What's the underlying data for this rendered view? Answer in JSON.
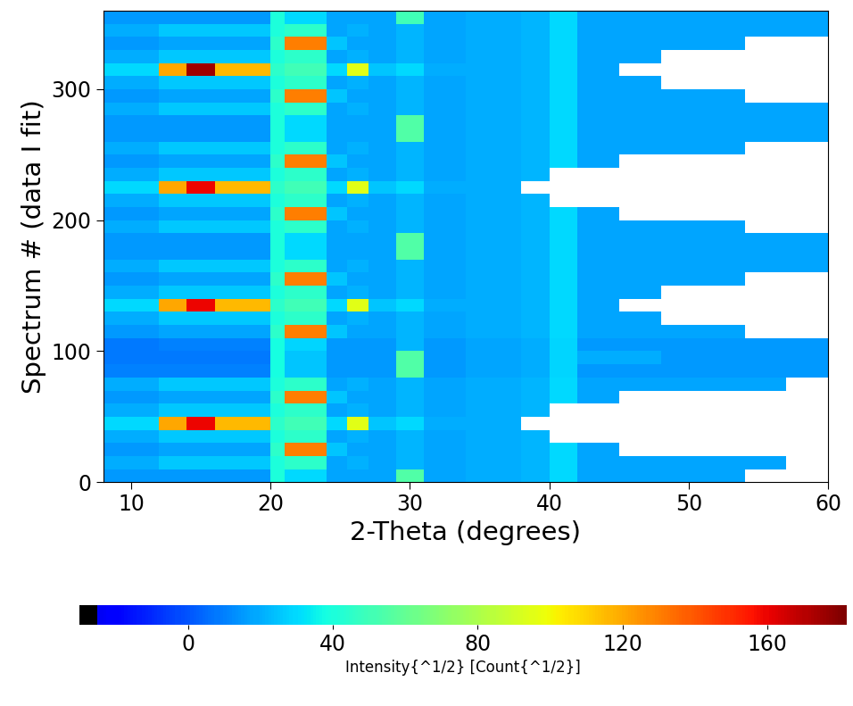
{
  "chart_data": {
    "type": "heatmap",
    "x_label": "2-Theta (degrees)",
    "y_label": "Spectrum # (data I fit)",
    "xlim": [
      8,
      60
    ],
    "xticks": [
      10,
      20,
      30,
      40,
      50,
      60
    ],
    "ylim": [
      0,
      360
    ],
    "yticks": [
      0,
      100,
      200,
      300
    ],
    "x_edges": [
      8,
      12,
      14,
      16,
      18,
      20,
      21,
      24,
      25.5,
      27,
      29,
      31,
      34,
      38,
      40,
      42,
      45,
      48,
      51,
      54,
      57,
      60
    ],
    "y_edges": [
      0,
      10,
      20,
      30,
      40,
      50,
      60,
      70,
      80,
      90,
      100,
      110,
      120,
      130,
      140,
      150,
      160,
      170,
      180,
      190,
      200,
      210,
      220,
      230,
      240,
      250,
      260,
      270,
      280,
      290,
      300,
      310,
      320,
      330,
      340,
      350,
      360
    ],
    "cells": [
      [
        15,
        15,
        15,
        15,
        15,
        40,
        30,
        18,
        18,
        18,
        55,
        18,
        20,
        22,
        30,
        18,
        18,
        18,
        18,
        null,
        null
      ],
      [
        20,
        26,
        26,
        26,
        26,
        40,
        45,
        18,
        21,
        18,
        22,
        18,
        20,
        22,
        30,
        18,
        18,
        18,
        18,
        18,
        null
      ],
      [
        15,
        18,
        18,
        18,
        18,
        45,
        130,
        25,
        18,
        18,
        22,
        18,
        20,
        22,
        30,
        18,
        null,
        null,
        null,
        null,
        null
      ],
      [
        20,
        26,
        26,
        26,
        26,
        40,
        45,
        18,
        21,
        18,
        22,
        18,
        20,
        22,
        null,
        null,
        null,
        null,
        null,
        null,
        null
      ],
      [
        30,
        120,
        160,
        115,
        115,
        45,
        50,
        30,
        95,
        25,
        30,
        20,
        20,
        null,
        null,
        null,
        null,
        null,
        null,
        null,
        null
      ],
      [
        20,
        26,
        26,
        26,
        26,
        40,
        45,
        18,
        21,
        18,
        22,
        18,
        20,
        22,
        null,
        null,
        null,
        null,
        null,
        null,
        null
      ],
      [
        15,
        18,
        18,
        18,
        18,
        45,
        130,
        25,
        18,
        18,
        22,
        18,
        20,
        22,
        30,
        18,
        null,
        null,
        null,
        null,
        null
      ],
      [
        20,
        26,
        26,
        26,
        26,
        40,
        45,
        18,
        21,
        18,
        22,
        18,
        20,
        22,
        30,
        18,
        18,
        18,
        18,
        18,
        null
      ],
      [
        10,
        10,
        10,
        10,
        10,
        38,
        25,
        15,
        15,
        15,
        55,
        15,
        18,
        20,
        28,
        15,
        15,
        15,
        15,
        15,
        15
      ],
      [
        8,
        8,
        8,
        8,
        8,
        38,
        25,
        15,
        15,
        15,
        55,
        15,
        18,
        20,
        28,
        20,
        20,
        15,
        15,
        15,
        15
      ],
      [
        8,
        10,
        10,
        10,
        10,
        38,
        28,
        15,
        15,
        15,
        22,
        15,
        18,
        20,
        28,
        15,
        15,
        15,
        15,
        15,
        15
      ],
      [
        15,
        18,
        18,
        18,
        18,
        45,
        130,
        25,
        18,
        18,
        22,
        18,
        20,
        22,
        30,
        18,
        18,
        18,
        18,
        null,
        null
      ],
      [
        20,
        26,
        26,
        26,
        26,
        40,
        45,
        18,
        21,
        18,
        22,
        18,
        20,
        22,
        30,
        18,
        18,
        null,
        null,
        null,
        null
      ],
      [
        30,
        120,
        160,
        115,
        115,
        45,
        50,
        30,
        95,
        25,
        30,
        20,
        20,
        22,
        30,
        18,
        null,
        null,
        null,
        null,
        null
      ],
      [
        20,
        26,
        26,
        26,
        26,
        40,
        45,
        18,
        21,
        18,
        22,
        18,
        20,
        22,
        30,
        18,
        18,
        null,
        null,
        null,
        null
      ],
      [
        15,
        18,
        18,
        18,
        18,
        45,
        130,
        25,
        18,
        18,
        22,
        18,
        20,
        22,
        30,
        18,
        18,
        18,
        18,
        null,
        null
      ],
      [
        20,
        26,
        26,
        26,
        26,
        40,
        45,
        18,
        21,
        18,
        22,
        18,
        20,
        22,
        30,
        18,
        18,
        18,
        18,
        18,
        18
      ],
      [
        15,
        15,
        15,
        15,
        15,
        40,
        30,
        18,
        18,
        18,
        55,
        18,
        20,
        22,
        30,
        18,
        18,
        18,
        18,
        18,
        18
      ],
      [
        15,
        15,
        15,
        15,
        15,
        40,
        30,
        18,
        18,
        18,
        55,
        18,
        20,
        22,
        30,
        18,
        18,
        18,
        18,
        18,
        18
      ],
      [
        20,
        26,
        26,
        26,
        26,
        40,
        45,
        18,
        21,
        18,
        22,
        18,
        20,
        22,
        30,
        18,
        18,
        18,
        18,
        null,
        null
      ],
      [
        15,
        18,
        18,
        18,
        18,
        45,
        130,
        25,
        18,
        18,
        22,
        18,
        20,
        22,
        30,
        18,
        null,
        null,
        null,
        null,
        null
      ],
      [
        20,
        26,
        26,
        26,
        26,
        40,
        45,
        18,
        21,
        18,
        22,
        18,
        20,
        22,
        null,
        null,
        null,
        null,
        null,
        null,
        null
      ],
      [
        30,
        120,
        160,
        115,
        115,
        45,
        50,
        30,
        95,
        25,
        30,
        20,
        20,
        null,
        null,
        null,
        null,
        null,
        null,
        null,
        null
      ],
      [
        20,
        26,
        26,
        26,
        26,
        40,
        45,
        18,
        21,
        18,
        22,
        18,
        20,
        22,
        null,
        null,
        null,
        null,
        null,
        null,
        null
      ],
      [
        15,
        18,
        18,
        18,
        18,
        45,
        130,
        25,
        18,
        18,
        22,
        18,
        20,
        22,
        30,
        18,
        null,
        null,
        null,
        null,
        null
      ],
      [
        20,
        26,
        26,
        26,
        26,
        40,
        45,
        18,
        21,
        18,
        22,
        18,
        20,
        22,
        30,
        18,
        18,
        18,
        18,
        null,
        null
      ],
      [
        15,
        15,
        15,
        15,
        15,
        40,
        30,
        18,
        18,
        18,
        55,
        18,
        20,
        22,
        30,
        18,
        18,
        18,
        18,
        18,
        18
      ],
      [
        15,
        15,
        15,
        15,
        15,
        40,
        30,
        18,
        18,
        18,
        55,
        18,
        20,
        22,
        30,
        18,
        18,
        18,
        18,
        18,
        18
      ],
      [
        20,
        26,
        26,
        26,
        26,
        40,
        45,
        18,
        21,
        18,
        22,
        18,
        20,
        22,
        30,
        18,
        18,
        18,
        18,
        18,
        18
      ],
      [
        15,
        18,
        18,
        18,
        18,
        45,
        130,
        25,
        18,
        18,
        22,
        18,
        20,
        22,
        30,
        18,
        18,
        18,
        18,
        null,
        null
      ],
      [
        20,
        26,
        26,
        26,
        26,
        40,
        45,
        18,
        21,
        18,
        22,
        18,
        20,
        22,
        30,
        18,
        18,
        null,
        null,
        null,
        null
      ],
      [
        30,
        120,
        175,
        115,
        115,
        45,
        50,
        30,
        95,
        25,
        30,
        20,
        20,
        22,
        30,
        18,
        null,
        null,
        null,
        null,
        null
      ],
      [
        20,
        26,
        26,
        26,
        26,
        40,
        45,
        18,
        21,
        18,
        22,
        18,
        20,
        22,
        30,
        18,
        18,
        null,
        null,
        null,
        null
      ],
      [
        15,
        18,
        18,
        18,
        18,
        45,
        130,
        25,
        18,
        18,
        22,
        18,
        20,
        22,
        30,
        18,
        18,
        18,
        18,
        null,
        null
      ],
      [
        20,
        26,
        26,
        26,
        26,
        40,
        45,
        18,
        21,
        18,
        22,
        18,
        20,
        22,
        30,
        18,
        18,
        18,
        18,
        18,
        18
      ],
      [
        15,
        15,
        15,
        15,
        15,
        40,
        30,
        18,
        18,
        18,
        50,
        18,
        20,
        22,
        30,
        18,
        18,
        18,
        18,
        18,
        18
      ]
    ],
    "colorbar": {
      "label": "Intensity{^1/2} [Count{^1/2}]",
      "range": [
        -30,
        182
      ],
      "ticks": [
        0,
        40,
        80,
        120,
        160
      ]
    }
  }
}
